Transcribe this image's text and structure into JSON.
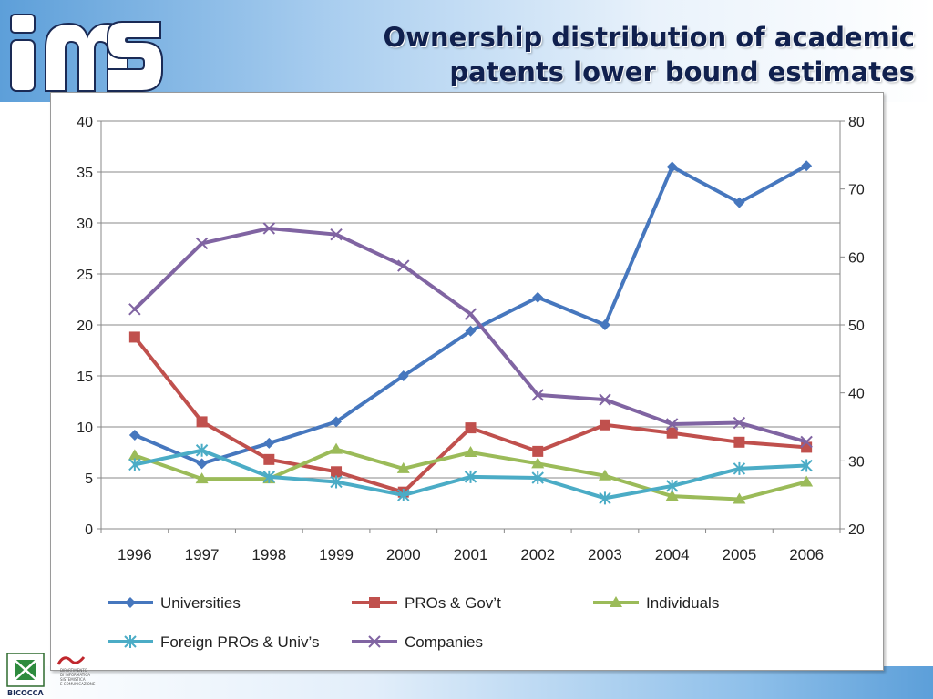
{
  "title": {
    "line1": "Ownership distribution of academic",
    "line2": "patents lower bound estimates"
  },
  "colors": {
    "universities": "#4677be",
    "pros_govt": "#c0504d",
    "individuals": "#9bbb59",
    "foreign": "#4bacc6",
    "companies": "#8064a2",
    "gridline": "#888888",
    "title_text": "#10204e"
  },
  "footer": {
    "university_name": "BICOCCA",
    "department_lines": [
      "DIPARTIMENTO",
      "DI INFORMATICA",
      "SISTEMISTICA",
      "E COMUNICAZIONE"
    ]
  },
  "chart_data": {
    "type": "line",
    "categories": [
      "1996",
      "1997",
      "1998",
      "1999",
      "2000",
      "2001",
      "2002",
      "2003",
      "2004",
      "2005",
      "2006"
    ],
    "y_left": {
      "min": 0,
      "max": 40,
      "ticks": [
        "0",
        "5",
        "10",
        "15",
        "20",
        "25",
        "30",
        "35",
        "40"
      ]
    },
    "y_right": {
      "min": 20,
      "max": 80,
      "ticks": [
        "20",
        "30",
        "40",
        "50",
        "60",
        "70",
        "80"
      ]
    },
    "grid": true,
    "legend_position": "bottom",
    "series": [
      {
        "name": "Universities",
        "axis": "left",
        "color": "#4677be",
        "marker": "diamond",
        "values": [
          9.2,
          6.4,
          8.4,
          10.5,
          15.0,
          19.4,
          22.7,
          20.0,
          35.5,
          32.0,
          35.6
        ]
      },
      {
        "name": "PROs & Gov’t",
        "axis": "left",
        "color": "#c0504d",
        "marker": "square",
        "values": [
          18.8,
          10.5,
          6.8,
          5.6,
          3.6,
          9.9,
          7.6,
          10.2,
          9.4,
          8.5,
          8.0
        ]
      },
      {
        "name": "Individuals",
        "axis": "left",
        "color": "#9bbb59",
        "marker": "triangle",
        "values": [
          7.2,
          4.9,
          4.9,
          7.8,
          5.9,
          7.5,
          6.4,
          5.2,
          3.2,
          2.9,
          4.6
        ]
      },
      {
        "name": "Foreign PROs & Univ’s",
        "axis": "left",
        "color": "#4bacc6",
        "marker": "star",
        "values": [
          6.3,
          7.7,
          5.1,
          4.6,
          3.3,
          5.1,
          5.0,
          3.0,
          4.2,
          5.9,
          6.2
        ]
      },
      {
        "name": "Companies",
        "axis": "right",
        "color": "#8064a2",
        "marker": "x",
        "values": [
          52.3,
          62.0,
          64.2,
          63.3,
          58.7,
          51.6,
          39.7,
          39.0,
          35.4,
          35.6,
          32.8
        ]
      }
    ]
  }
}
